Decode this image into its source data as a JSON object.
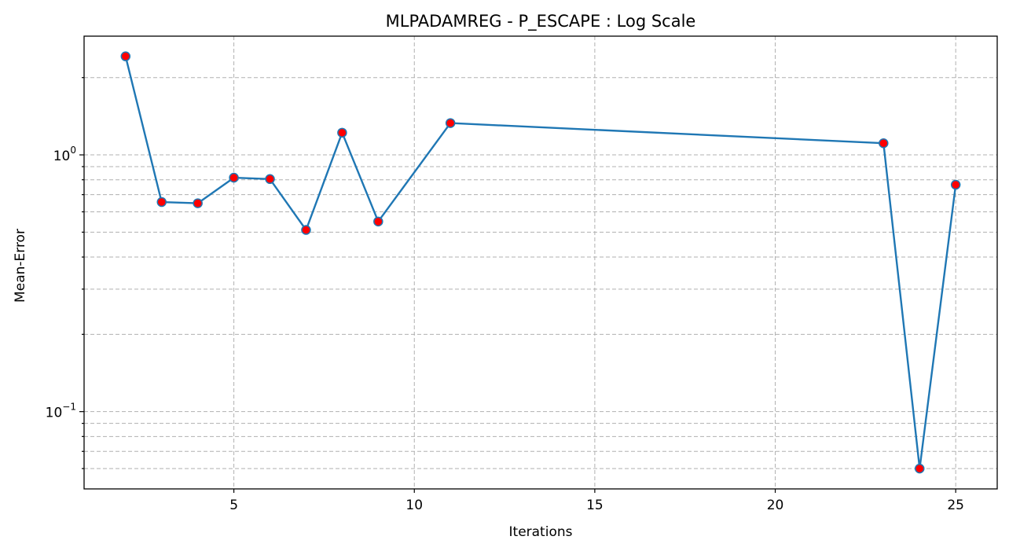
{
  "chart_data": {
    "type": "line",
    "title": "MLPADAMREG - P_ESCAPE : Log Scale",
    "xlabel": "Iterations",
    "ylabel": "Mean-Error",
    "yscale": "log",
    "xlim": [
      0.85,
      26.15
    ],
    "ylim": [
      0.05,
      2.9
    ],
    "x_ticks": [
      5,
      10,
      15,
      20,
      25
    ],
    "y_major_ticks": [
      0.1,
      1
    ],
    "y_major_tick_labels": [
      {
        "base": "10",
        "exp": "−1"
      },
      {
        "base": "10",
        "exp": "0"
      }
    ],
    "y_minor_ticks": [
      0.06,
      0.07,
      0.08,
      0.09,
      0.2,
      0.3,
      0.4,
      0.5,
      0.6,
      0.7,
      0.8,
      0.9,
      2
    ],
    "grid": true,
    "series": [
      {
        "x": [
          2,
          3,
          4,
          5,
          6,
          7,
          8,
          9,
          11,
          23,
          24,
          25
        ],
        "y": [
          2.42,
          0.655,
          0.648,
          0.815,
          0.805,
          0.51,
          1.22,
          0.55,
          1.33,
          1.11,
          0.06,
          0.765
        ],
        "line_color": "#1f77b4",
        "marker_face": "#ff0000",
        "marker_edge": "#1f77b4"
      }
    ]
  }
}
